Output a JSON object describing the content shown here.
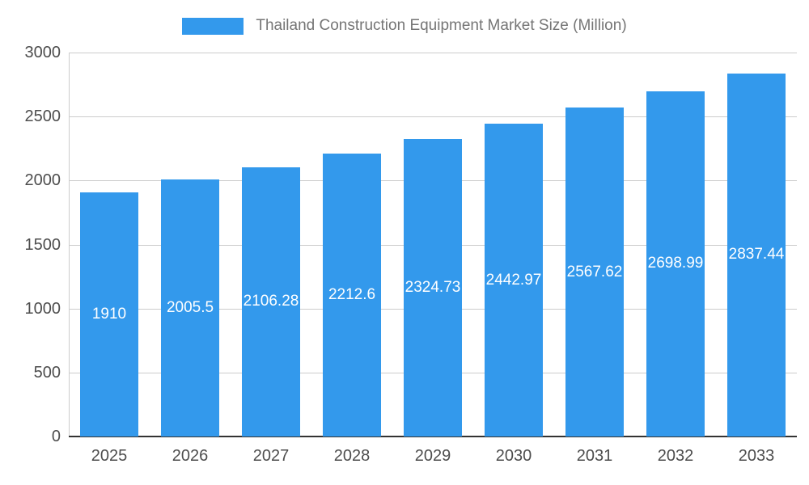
{
  "legend": {
    "title": "Thailand Construction Equipment Market Size (Million)"
  },
  "chart_data": {
    "type": "bar",
    "title": "Thailand Construction Equipment Market Size (Million)",
    "categories": [
      "2025",
      "2026",
      "2027",
      "2028",
      "2029",
      "2030",
      "2031",
      "2032",
      "2033"
    ],
    "values": [
      1910,
      2005.5,
      2106.28,
      2212.6,
      2324.73,
      2442.97,
      2567.62,
      2698.99,
      2837.44
    ],
    "value_labels": [
      "1910",
      "2005.5",
      "2106.28",
      "2212.6",
      "2324.73",
      "2442.97",
      "2567.62",
      "2698.99",
      "2837.44"
    ],
    "xlabel": "",
    "ylabel": "",
    "ylim": [
      0,
      3000
    ],
    "yticks": [
      0,
      500,
      1000,
      1500,
      2000,
      2500,
      3000
    ],
    "grid": true,
    "legend_position": "top",
    "bar_color": "#3399EC",
    "gridline_color": "#cccccc",
    "baseline_color": "#333333",
    "axis_text_color": "#4d4d4d",
    "title_color": "#757575",
    "value_label_color": "#ffffff"
  }
}
